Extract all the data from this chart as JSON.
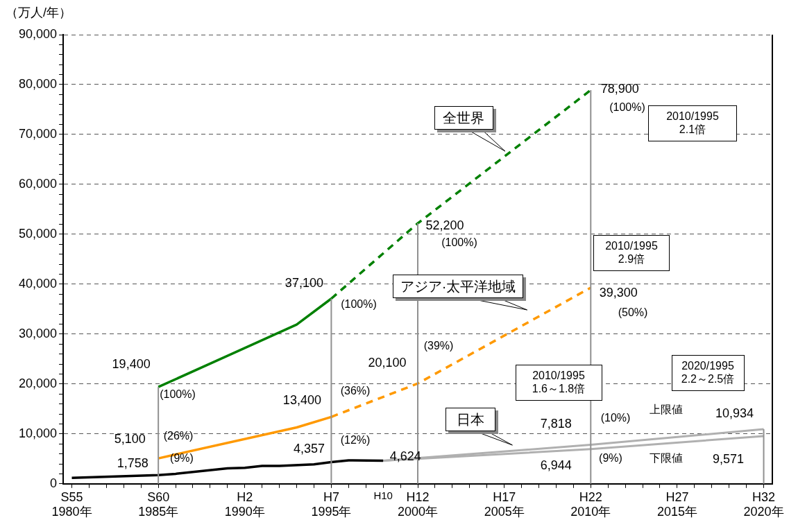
{
  "chart_data": {
    "type": "line",
    "ylabel": "（万人/年）",
    "categories": [
      "S55\n1980年",
      null,
      null,
      null,
      null,
      "S60\n1985年",
      null,
      null,
      null,
      null,
      "H2\n1990年",
      null,
      null,
      null,
      null,
      "H7\n1995年",
      null,
      null,
      "H10",
      null,
      "H12\n2000年",
      null,
      null,
      null,
      null,
      "H17\n2005年",
      null,
      null,
      null,
      null,
      "H22\n2010年",
      null,
      null,
      null,
      null,
      "H27\n2015年",
      null,
      null,
      null,
      null,
      "H32\n2020年"
    ],
    "ylim": [
      0,
      90000
    ],
    "yticks": [
      0,
      {
        "value": 2000,
        "label": null
      },
      {
        "value": 4000,
        "label": null
      },
      {
        "value": 6000,
        "label": null
      },
      {
        "value": 8000,
        "label": null
      },
      {
        "value": 10000,
        "label": "10,000"
      },
      {
        "value": 12000,
        "label": null
      },
      {
        "value": 14000,
        "label": null
      },
      {
        "value": 16000,
        "label": null
      },
      {
        "value": 18000,
        "label": null
      },
      {
        "value": 20000,
        "label": "20,000"
      },
      {
        "value": 22000,
        "label": null
      },
      {
        "value": 24000,
        "label": null
      },
      {
        "value": 26000,
        "label": null
      },
      {
        "value": 28000,
        "label": null
      },
      {
        "value": 30000,
        "label": "30,000"
      },
      {
        "value": 32000,
        "label": null
      },
      {
        "value": 34000,
        "label": null
      },
      {
        "value": 36000,
        "label": null
      },
      {
        "value": 38000,
        "label": null
      },
      {
        "value": 40000,
        "label": "40,000"
      },
      {
        "value": 42000,
        "label": null
      },
      {
        "value": 44000,
        "label": null
      },
      {
        "value": 46000,
        "label": null
      },
      {
        "value": 48000,
        "label": null
      },
      {
        "value": 50000,
        "label": "50,000"
      },
      {
        "value": 52000,
        "label": null
      },
      {
        "value": 54000,
        "label": null
      },
      {
        "value": 56000,
        "label": null
      },
      {
        "value": 58000,
        "label": null
      },
      {
        "value": 60000,
        "label": "60,000"
      },
      {
        "value": 62000,
        "label": null
      },
      {
        "value": 64000,
        "label": null
      },
      {
        "value": 66000,
        "label": null
      },
      {
        "value": 68000,
        "label": null
      },
      {
        "value": 70000,
        "label": "70,000"
      },
      {
        "value": 72000,
        "label": null
      },
      {
        "value": 74000,
        "label": null
      },
      {
        "value": 76000,
        "label": null
      },
      {
        "value": 78000,
        "label": null
      },
      {
        "value": 80000,
        "label": "80,000"
      },
      {
        "value": 82000,
        "label": null
      },
      {
        "value": 84000,
        "label": null
      },
      {
        "value": 86000,
        "label": null
      },
      {
        "value": 88000,
        "label": null
      },
      {
        "value": 90000,
        "label": "90,000"
      }
    ],
    "grid": "y",
    "legend": false,
    "marker": "none",
    "series": [
      {
        "color": "#008000",
        "line_style": "solid",
        "values": [
          null,
          null,
          null,
          null,
          null,
          19400,
          null,
          null,
          null,
          null,
          null,
          null,
          null,
          31900,
          null,
          37100,
          null,
          null,
          null,
          null,
          null,
          null,
          null,
          null,
          null,
          null,
          null,
          null,
          null,
          null,
          null,
          null,
          null,
          null,
          null,
          null,
          null,
          null,
          null,
          null,
          null
        ],
        "value_labels": [
          null,
          null,
          null,
          null,
          null,
          "19,400",
          null,
          null,
          null,
          null,
          null,
          null,
          null,
          null,
          null,
          "37,100",
          null,
          null,
          null,
          null,
          null,
          null,
          null,
          null,
          null,
          null,
          null,
          null,
          null,
          null,
          null,
          null,
          null,
          null,
          null,
          null,
          null,
          null,
          null,
          null,
          null
        ]
      },
      {
        "color": "#008000",
        "line_style": "dashed",
        "values": [
          null,
          null,
          null,
          null,
          null,
          null,
          null,
          null,
          null,
          null,
          null,
          null,
          null,
          null,
          null,
          37100,
          null,
          null,
          null,
          null,
          52200,
          null,
          null,
          null,
          null,
          null,
          null,
          null,
          null,
          null,
          78900,
          null,
          null,
          null,
          null,
          null,
          null,
          null,
          null,
          null,
          null
        ],
        "value_labels": [
          null,
          null,
          null,
          null,
          null,
          null,
          null,
          null,
          null,
          null,
          null,
          null,
          null,
          null,
          null,
          null,
          null,
          null,
          null,
          null,
          "52,200",
          null,
          null,
          null,
          null,
          null,
          null,
          null,
          null,
          null,
          "78,900",
          null,
          null,
          null,
          null,
          null,
          null,
          null,
          null,
          null,
          null
        ]
      },
      {
        "color": "#ff9900",
        "line_style": "solid",
        "values": [
          null,
          null,
          null,
          null,
          null,
          5100,
          null,
          null,
          null,
          null,
          null,
          null,
          null,
          11300,
          null,
          13400,
          null,
          null,
          null,
          null,
          null,
          null,
          null,
          null,
          null,
          null,
          null,
          null,
          null,
          null,
          null,
          null,
          null,
          null,
          null,
          null,
          null,
          null,
          null,
          null,
          null
        ],
        "value_labels": [
          null,
          null,
          null,
          null,
          null,
          "5,100",
          null,
          null,
          null,
          null,
          null,
          null,
          null,
          null,
          null,
          "13,400",
          null,
          null,
          null,
          null,
          null,
          null,
          null,
          null,
          null,
          null,
          null,
          null,
          null,
          null,
          null,
          null,
          null,
          null,
          null,
          null,
          null,
          null,
          null,
          null,
          null
        ]
      },
      {
        "color": "#ff9900",
        "line_style": "dashed",
        "values": [
          null,
          null,
          null,
          null,
          null,
          null,
          null,
          null,
          null,
          null,
          null,
          null,
          null,
          null,
          null,
          13400,
          null,
          null,
          null,
          null,
          20100,
          null,
          null,
          null,
          null,
          null,
          null,
          null,
          null,
          null,
          39300,
          null,
          null,
          null,
          null,
          null,
          null,
          null,
          null,
          null,
          null
        ],
        "value_labels": [
          null,
          null,
          null,
          null,
          null,
          null,
          null,
          null,
          null,
          null,
          null,
          null,
          null,
          null,
          null,
          null,
          null,
          null,
          null,
          null,
          "20,100",
          null,
          null,
          null,
          null,
          null,
          null,
          null,
          null,
          null,
          "39,300",
          null,
          null,
          null,
          null,
          null,
          null,
          null,
          null,
          null,
          null
        ]
      },
      {
        "color": "#000000",
        "line_style": "solid",
        "values": [
          1200,
          null,
          null,
          null,
          null,
          1758,
          2000,
          null,
          null,
          3100,
          3200,
          3600,
          3600,
          null,
          3900,
          4357,
          4700,
          null,
          4624,
          null,
          null,
          null,
          null,
          null,
          null,
          null,
          null,
          null,
          null,
          null,
          null,
          null,
          null,
          null,
          null,
          null,
          null,
          null,
          null,
          null,
          null
        ],
        "value_labels": [
          null,
          null,
          null,
          null,
          null,
          "1,758",
          null,
          null,
          null,
          null,
          null,
          null,
          null,
          null,
          null,
          "4,357",
          null,
          null,
          "4,624",
          null,
          null,
          null,
          null,
          null,
          null,
          null,
          null,
          null,
          null,
          null,
          null,
          null,
          null,
          null,
          null,
          null,
          null,
          null,
          null,
          null,
          null
        ]
      },
      {
        "name": "上限値",
        "color": "#b0b0b0",
        "line_style": "solid",
        "values": [
          null,
          null,
          null,
          null,
          null,
          null,
          null,
          null,
          null,
          null,
          null,
          null,
          null,
          null,
          null,
          null,
          null,
          null,
          4624,
          null,
          null,
          null,
          null,
          null,
          null,
          null,
          null,
          null,
          null,
          null,
          7818,
          null,
          null,
          null,
          null,
          null,
          null,
          null,
          null,
          null,
          10934
        ],
        "value_labels": [
          null,
          null,
          null,
          null,
          null,
          null,
          null,
          null,
          null,
          null,
          null,
          null,
          null,
          null,
          null,
          null,
          null,
          null,
          null,
          null,
          null,
          null,
          null,
          null,
          null,
          null,
          null,
          null,
          null,
          null,
          "7,818",
          null,
          null,
          null,
          null,
          null,
          null,
          null,
          null,
          null,
          "10,934"
        ]
      },
      {
        "name": "下限値",
        "color": "#b0b0b0",
        "line_style": "solid",
        "values": [
          null,
          null,
          null,
          null,
          null,
          null,
          null,
          null,
          null,
          null,
          null,
          null,
          null,
          null,
          null,
          null,
          null,
          null,
          4624,
          null,
          null,
          null,
          null,
          null,
          null,
          null,
          null,
          null,
          null,
          null,
          6944,
          null,
          null,
          null,
          null,
          null,
          null,
          null,
          null,
          null,
          9571
        ],
        "value_labels": [
          null,
          null,
          null,
          null,
          null,
          null,
          null,
          null,
          null,
          null,
          null,
          null,
          null,
          null,
          null,
          null,
          null,
          null,
          null,
          null,
          null,
          null,
          null,
          null,
          null,
          null,
          null,
          null,
          null,
          null,
          "6,944",
          null,
          null,
          null,
          null,
          null,
          null,
          null,
          null,
          null,
          "9,571"
        ]
      }
    ],
    "ref_lines": [
      {
        "axis": "x",
        "value": "S60\n1985年",
        "color": "#909090"
      },
      {
        "axis": "x",
        "value": "H7\n1995年",
        "color": "#909090"
      },
      {
        "axis": "x",
        "value": "H12\n2000年",
        "color": "#909090"
      },
      {
        "axis": "x",
        "value": "H22\n2010年",
        "color": "#909090"
      },
      {
        "axis": "x",
        "value": "H32\n2020年",
        "color": "#909090"
      }
    ],
    "annotations": [
      "全世界",
      "アジア·太平洋地域",
      "日本",
      "2010/1995\n2.1倍",
      "2010/1995\n2.9倍",
      "2010/1995\n1.6～1.8倍",
      "2020/1995\n2.2～2.5倍",
      "(100%)",
      "(26%)",
      "(9%)",
      "(100%)",
      "(36%)",
      "(12%)",
      "(100%)",
      "(39%)",
      "(100%)",
      "(50%)",
      "(10%)",
      "(9%)"
    ]
  }
}
